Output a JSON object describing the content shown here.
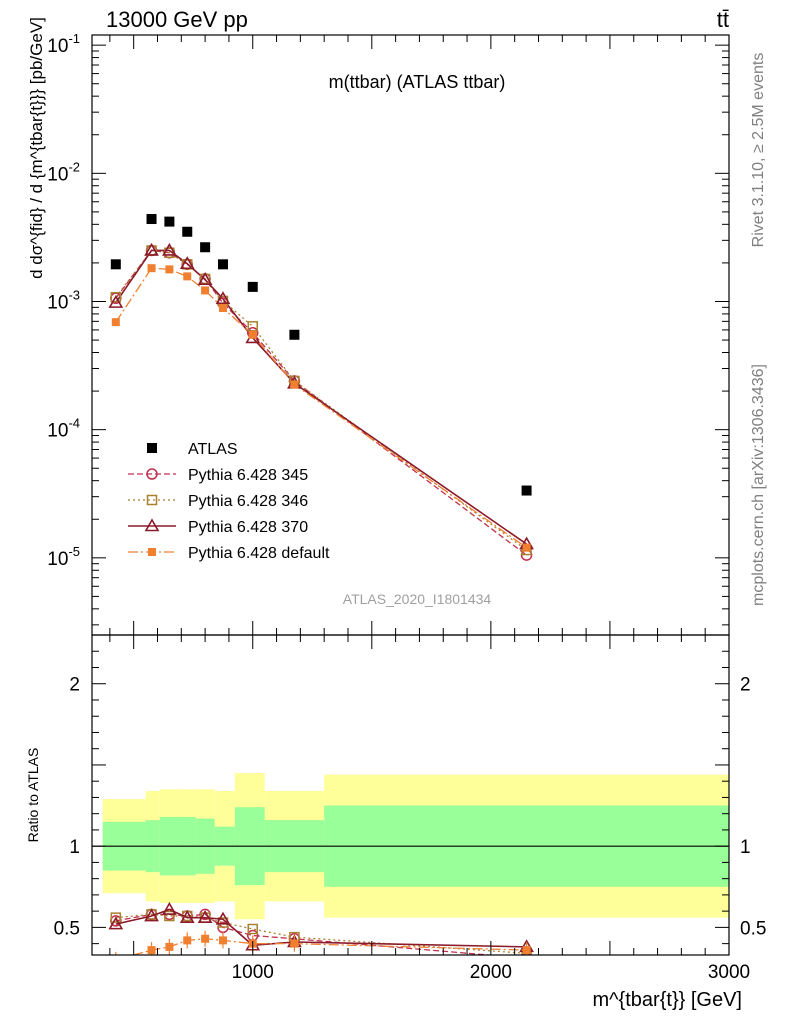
{
  "header": {
    "beam": "13000 GeV pp",
    "process": "tt̄",
    "plot_title": "m(ttbar) (ATLAS ttbar)",
    "analysis_id": "ATLAS_2020_I1801434",
    "rivet_version": "Rivet 3.1.10, ≥ 2.5M events",
    "source": "mcplots.cern.ch [arXiv:1306.3436]"
  },
  "colors": {
    "data": "#000000",
    "p345": "#c0304d",
    "p346": "#a88030",
    "p370": "#8b1a2a",
    "pdefault": "#f08030",
    "band_inner": "#99ff99",
    "band_outer": "#ffff99"
  },
  "chart_data": [
    {
      "type": "scatter",
      "name": "main",
      "ylabel": "d dσ^{fid} / d {m^{tbar{t}}} [pb/GeV]",
      "xlabel": "m^{tbar{t}} [GeV]",
      "xlim": [
        325,
        3000
      ],
      "ylim": [
        2.5e-06,
        0.12
      ],
      "yscale": "log",
      "yticks": [
        {
          "value": 0.1,
          "mant": "10",
          "exp": "-1"
        },
        {
          "value": 0.01,
          "mant": "10",
          "exp": "-2"
        },
        {
          "value": 0.001,
          "mant": "10",
          "exp": "-3"
        },
        {
          "value": 0.0001,
          "mant": "10",
          "exp": "-4"
        },
        {
          "value": 1e-05,
          "mant": "10",
          "exp": "-5"
        }
      ],
      "x": [
        425,
        575,
        650,
        725,
        800,
        875,
        1000,
        1175,
        2150
      ],
      "series": [
        {
          "name": "ATLAS",
          "key": "data",
          "marker": "square",
          "dash": "none",
          "values": [
            0.00195,
            0.0044,
            0.0042,
            0.0035,
            0.00265,
            0.00195,
            0.0013,
            0.00055,
            3.35e-05
          ]
        },
        {
          "name": "Pythia 6.428 345",
          "key": "p345",
          "marker": "circle",
          "dash": "6,3",
          "values": [
            0.00106,
            0.0025,
            0.0024,
            0.00195,
            0.0015,
            0.00097,
            0.00057,
            0.00024,
            1.05e-05
          ]
        },
        {
          "name": "Pythia 6.428 346",
          "key": "p346",
          "marker": "open-square",
          "dash": "2,3",
          "values": [
            0.00108,
            0.0025,
            0.0024,
            0.00195,
            0.0015,
            0.00101,
            0.00064,
            0.00024,
            1.15e-05
          ]
        },
        {
          "name": "Pythia 6.428 370",
          "key": "p370",
          "marker": "triangle",
          "dash": "none",
          "values": [
            0.00098,
            0.0025,
            0.0025,
            0.00197,
            0.00148,
            0.00105,
            0.00052,
            0.00023,
            1.28e-05
          ]
        },
        {
          "name": "Pythia 6.428 default",
          "key": "pdefault",
          "marker": "filled-square",
          "dash": "10,3,2,3",
          "values": [
            0.00069,
            0.00182,
            0.00178,
            0.00157,
            0.00122,
            0.00089,
            0.00055,
            0.000225,
            1.2e-05
          ]
        }
      ]
    },
    {
      "type": "line",
      "name": "ratio",
      "ylabel": "Ratio to ATLAS",
      "xlabel": "m^{tbar{t}} [GeV]",
      "xlim": [
        325,
        3000
      ],
      "ylim": [
        0.33,
        2.3
      ],
      "yticks": [
        0.5,
        1,
        2
      ],
      "xticks": [
        1000,
        2000,
        3000
      ],
      "bins": [
        {
          "lo": 325,
          "hi": 550,
          "inner": 0.15,
          "outer": 0.29
        },
        {
          "lo": 550,
          "hi": 610,
          "inner": 0.16,
          "outer": 0.34
        },
        {
          "lo": 610,
          "hi": 690,
          "inner": 0.18,
          "outer": 0.35
        },
        {
          "lo": 690,
          "hi": 760,
          "inner": 0.18,
          "outer": 0.35
        },
        {
          "lo": 760,
          "hi": 840,
          "inner": 0.17,
          "outer": 0.35
        },
        {
          "lo": 840,
          "hi": 925,
          "inner": 0.12,
          "outer": 0.34
        },
        {
          "lo": 925,
          "hi": 1050,
          "inner": 0.24,
          "outer": 0.45
        },
        {
          "lo": 1050,
          "hi": 1300,
          "inner": 0.16,
          "outer": 0.34
        },
        {
          "lo": 1300,
          "hi": 3000,
          "inner": 0.25,
          "outer": 0.44
        }
      ],
      "series": [
        {
          "key": "p345",
          "values": [
            0.54,
            0.58,
            0.58,
            0.57,
            0.58,
            0.5,
            0.45,
            0.43,
            0.31
          ]
        },
        {
          "key": "p346",
          "values": [
            0.56,
            0.58,
            0.57,
            0.57,
            0.56,
            0.53,
            0.49,
            0.44,
            0.34
          ]
        },
        {
          "key": "p370",
          "values": [
            0.52,
            0.57,
            0.61,
            0.56,
            0.56,
            0.55,
            0.39,
            0.41,
            0.38
          ]
        },
        {
          "key": "pdefault",
          "values": [
            0.3,
            0.36,
            0.38,
            0.42,
            0.43,
            0.42,
            0.4,
            0.4,
            0.36
          ]
        }
      ]
    }
  ]
}
